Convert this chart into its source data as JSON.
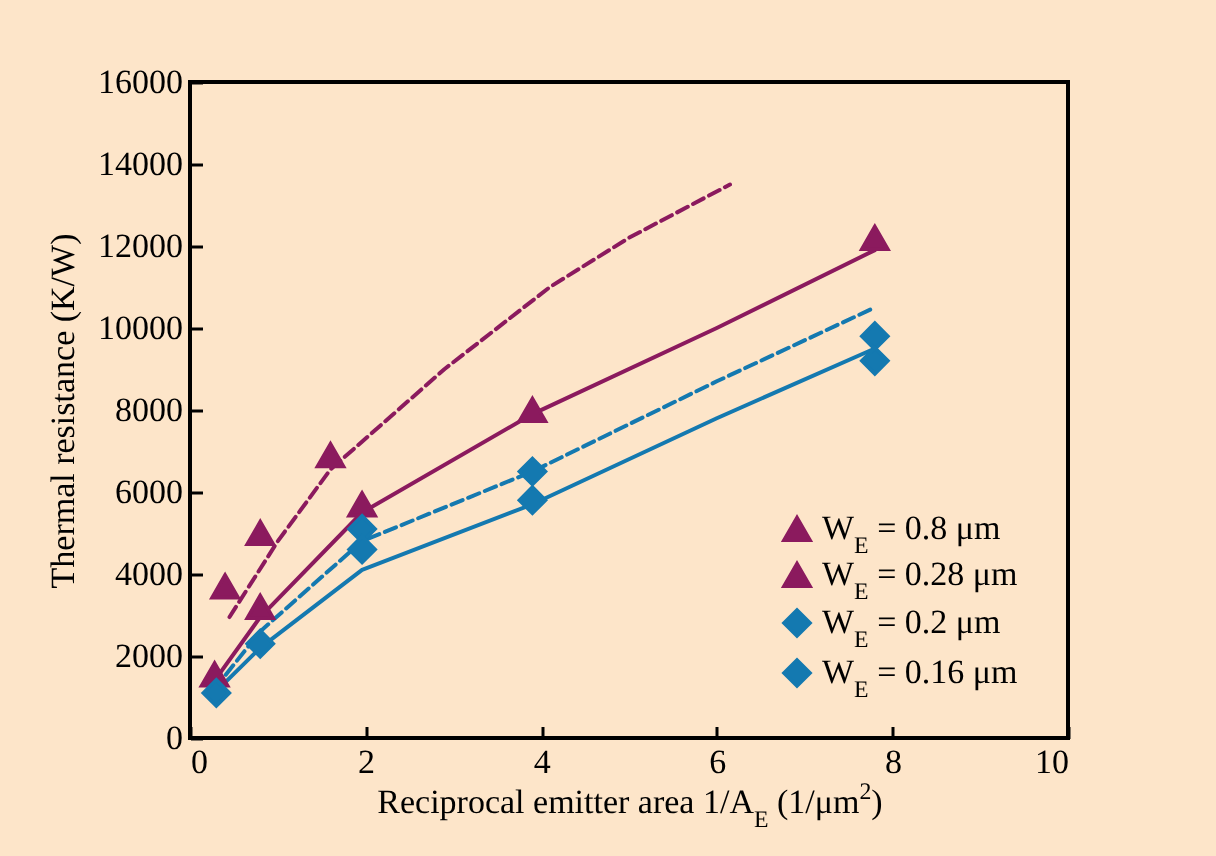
{
  "chart_data": {
    "type": "scatter",
    "xlabel": "Reciprocal emitter area 1/A$_{E}$ (1/μm$^{2}$)",
    "ylabel": "Thermal resistance  (K/W)",
    "xlim": [
      0,
      10
    ],
    "xticks": [
      0,
      2,
      4,
      6,
      8,
      10
    ],
    "ylim": [
      0,
      16000
    ],
    "yticks": [
      0,
      2000,
      4000,
      6000,
      8000,
      10000,
      12000,
      14000,
      16000
    ],
    "grid": false,
    "legend": "bottom right",
    "series": [
      {
        "name": "W$_{E}$ = 0.8 μm",
        "marker": "triangle",
        "color": "#8b1a5e",
        "x": [
          0.4,
          0.8,
          1.6
        ],
        "values": [
          3700,
          5000,
          6900
        ]
      },
      {
        "name": "W$_{E}$ = 0.28 μm",
        "marker": "triangle",
        "color": "#8b1a5e",
        "x": [
          0.28,
          0.8,
          1.96,
          3.9,
          7.8
        ],
        "values": [
          1550,
          3200,
          5700,
          8000,
          12200
        ]
      },
      {
        "name": "W$_{E}$ = 0.2 μm",
        "marker": "diamond",
        "color": "#1479b0",
        "x": [
          0.3,
          1.96,
          3.9,
          7.8
        ],
        "values": [
          1100,
          5100,
          6500,
          9800
        ]
      },
      {
        "name": "W$_{E}$ = 0.16 μm",
        "marker": "diamond",
        "color": "#1479b0",
        "x": [
          0.8,
          1.96,
          3.9,
          7.8
        ],
        "values": [
          2300,
          4600,
          5800,
          9200
        ]
      },
      {
        "type": "line",
        "line_style": "dashed",
        "color": "#8b1a5e",
        "x": [
          0.45,
          1,
          1.6,
          2.9,
          4.1,
          5,
          6.15
        ],
        "values": [
          2950,
          4800,
          6550,
          9000,
          11000,
          12200,
          13500
        ]
      },
      {
        "type": "line",
        "line_style": "solid",
        "color": "#8b1a5e",
        "x": [
          0.28,
          0.8,
          1.96,
          3.9,
          6,
          7.8
        ],
        "values": [
          1400,
          2950,
          5500,
          7900,
          10000,
          11900
        ]
      },
      {
        "type": "line",
        "line_style": "dashed",
        "color": "#1479b0",
        "x": [
          0.28,
          0.8,
          1.96,
          3.9,
          6,
          7.75
        ],
        "values": [
          1200,
          2600,
          4800,
          6500,
          8700,
          10450
        ]
      },
      {
        "type": "line",
        "line_style": "solid",
        "color": "#1479b0",
        "x": [
          0.28,
          0.8,
          1.96,
          3.9,
          6,
          7.8
        ],
        "values": [
          1100,
          2200,
          4100,
          5700,
          7800,
          9500
        ]
      }
    ]
  }
}
